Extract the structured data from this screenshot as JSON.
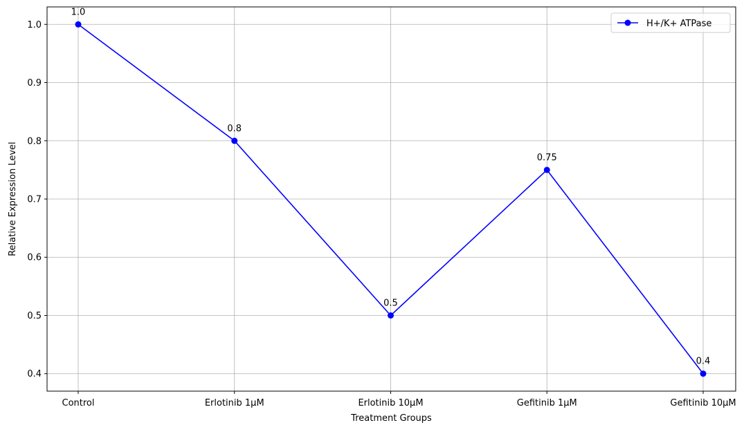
{
  "chart_data": {
    "type": "line",
    "title": "",
    "xlabel": "Treatment Groups",
    "ylabel": "Relative Expression Level",
    "categories": [
      "Control",
      "Erlotinib 1µM",
      "Erlotinib 10µM",
      "Gefitinib 1µM",
      "Gefitinib 10µM"
    ],
    "series": [
      {
        "name": "H+/K+ ATPase",
        "values": [
          1.0,
          0.8,
          0.5,
          0.75,
          0.4
        ],
        "data_labels": [
          "1.0",
          "0.8",
          "0.5",
          "0.75",
          "0.4"
        ],
        "color": "#0000ff",
        "marker": "circle"
      }
    ],
    "yticks": [
      0.4,
      0.5,
      0.6,
      0.7,
      0.8,
      0.9,
      1.0
    ],
    "ytick_labels": [
      "0.4",
      "0.5",
      "0.6",
      "0.7",
      "0.8",
      "0.9",
      "1.0"
    ],
    "ylim": [
      0.37,
      1.03
    ],
    "grid": true,
    "legend_position": "top-right"
  }
}
